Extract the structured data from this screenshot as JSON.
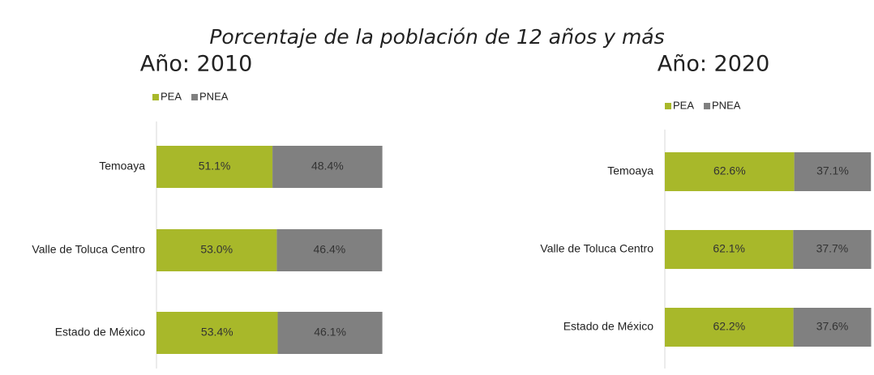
{
  "title": "Porcentaje de la población de 12 años y más",
  "chart_data": [
    {
      "type": "stacked_barh",
      "title": "Año: 2010",
      "categories": [
        "Temoaya",
        "Valle de Toluca Centro",
        "Estado de México"
      ],
      "xlim": [
        0,
        100
      ],
      "series": [
        {
          "name": "PEA",
          "color": "#a8b82a",
          "values": [
            51.1,
            53.0,
            53.4
          ],
          "value_labels": [
            "51.1%",
            "53.0%",
            "53.4%"
          ]
        },
        {
          "name": "PNEA",
          "color": "#808080",
          "values": [
            48.4,
            46.4,
            46.1
          ],
          "value_labels": [
            "48.4%",
            "46.4%",
            "46.1%"
          ]
        }
      ]
    },
    {
      "type": "stacked_barh",
      "title": "Año: 2020",
      "categories": [
        "Temoaya",
        "Valle de Toluca Centro",
        "Estado de México"
      ],
      "xlim": [
        0,
        100
      ],
      "series": [
        {
          "name": "PEA",
          "color": "#a8b82a",
          "values": [
            62.6,
            62.1,
            62.2
          ],
          "value_labels": [
            "62.6%",
            "62.1%",
            "62.2%"
          ]
        },
        {
          "name": "PNEA",
          "color": "#808080",
          "values": [
            37.1,
            37.7,
            37.6
          ],
          "value_labels": [
            "37.1%",
            "37.7%",
            "37.6%"
          ]
        }
      ]
    }
  ]
}
